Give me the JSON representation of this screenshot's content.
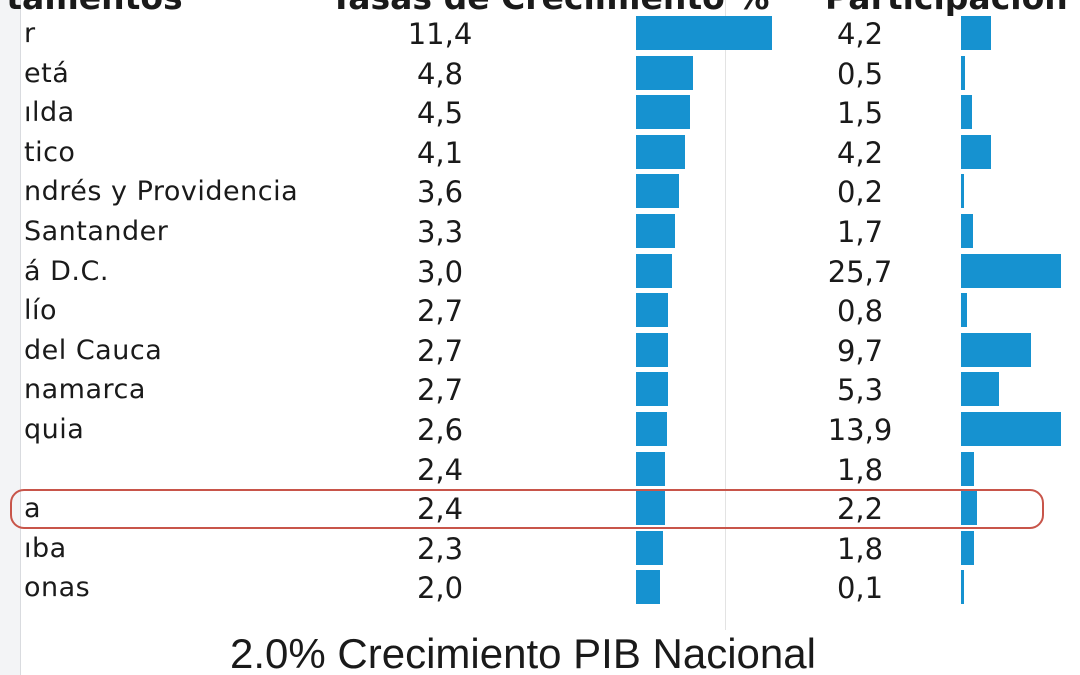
{
  "headers": {
    "department": "rtamentos",
    "growth": "Tasas de Crecimiento %",
    "share": "Participación"
  },
  "footer": "2.0% Crecimiento PIB Nacional",
  "colors": {
    "bar": "#1692d0",
    "highlight": "#c8554a"
  },
  "highlighted_index": 12,
  "chart_data": {
    "type": "table",
    "title": "",
    "columns": [
      "rtamentos",
      "Tasas de Crecimiento %",
      "Participación"
    ],
    "rows": [
      {
        "department": "r",
        "growth": 11.4,
        "growth_label": "11,4",
        "share": 4.2,
        "share_label": "4,2"
      },
      {
        "department": "etá",
        "growth": 4.8,
        "growth_label": "4,8",
        "share": 0.5,
        "share_label": "0,5"
      },
      {
        "department": "ılda",
        "growth": 4.5,
        "growth_label": "4,5",
        "share": 1.5,
        "share_label": "1,5"
      },
      {
        "department": "tico",
        "growth": 4.1,
        "growth_label": "4,1",
        "share": 4.2,
        "share_label": "4,2"
      },
      {
        "department": "ndrés y Providencia",
        "growth": 3.6,
        "growth_label": "3,6",
        "share": 0.2,
        "share_label": "0,2"
      },
      {
        "department": "Santander",
        "growth": 3.3,
        "growth_label": "3,3",
        "share": 1.7,
        "share_label": "1,7"
      },
      {
        "department": "á D.C.",
        "growth": 3.0,
        "growth_label": "3,0",
        "share": 25.7,
        "share_label": "25,7"
      },
      {
        "department": "lío",
        "growth": 2.7,
        "growth_label": "2,7",
        "share": 0.8,
        "share_label": "0,8"
      },
      {
        "department": "del Cauca",
        "growth": 2.7,
        "growth_label": "2,7",
        "share": 9.7,
        "share_label": "9,7"
      },
      {
        "department": "namarca",
        "growth": 2.7,
        "growth_label": "2,7",
        "share": 5.3,
        "share_label": "5,3"
      },
      {
        "department": "quia",
        "growth": 2.6,
        "growth_label": "2,6",
        "share": 13.9,
        "share_label": "13,9"
      },
      {
        "department": "",
        "growth": 2.4,
        "growth_label": "2,4",
        "share": 1.8,
        "share_label": "1,8"
      },
      {
        "department": "a",
        "growth": 2.4,
        "growth_label": "2,4",
        "share": 2.2,
        "share_label": "2,2"
      },
      {
        "department": "ıba",
        "growth": 2.3,
        "growth_label": "2,3",
        "share": 1.8,
        "share_label": "1,8"
      },
      {
        "department": "onas",
        "growth": 2.0,
        "growth_label": "2,0",
        "share": 0.1,
        "share_label": "0,1"
      }
    ],
    "growth_bar_max": 11.4,
    "share_bar_max": 13.9
  }
}
